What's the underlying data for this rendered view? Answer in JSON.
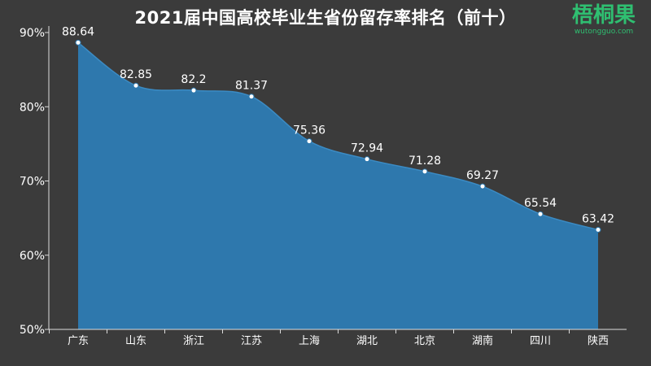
{
  "title": "2021届中国高校毕业生省份留存率排名（前十）",
  "logo": {
    "text": "梧桐果",
    "url": "wutongguo.com"
  },
  "colors": {
    "background": "#3b3b3b",
    "area_fill": "#2e78ad",
    "axis": "#dddddd",
    "text": "#ffffff",
    "logo": "#2fbf71"
  },
  "chart_data": {
    "type": "area",
    "title": "2021届中国高校毕业生省份留存率排名（前十）",
    "categories": [
      "广东",
      "山东",
      "浙江",
      "江苏",
      "上海",
      "湖北",
      "北京",
      "湖南",
      "四川",
      "陕西"
    ],
    "values": [
      88.64,
      82.85,
      82.2,
      81.37,
      75.36,
      72.94,
      71.28,
      69.27,
      65.54,
      63.42
    ],
    "value_labels": [
      "88.64",
      "82.85",
      "82.2",
      "81.37",
      "75.36",
      "72.94",
      "71.28",
      "69.27",
      "65.54",
      "63.42"
    ],
    "ylim": [
      50,
      90
    ],
    "yticks": [
      50,
      60,
      70,
      80,
      90
    ],
    "ytick_labels": [
      "50%",
      "60%",
      "70%",
      "80%",
      "90%"
    ],
    "xlabel": "",
    "ylabel": "",
    "grid": false,
    "legend": "none",
    "smooth": true
  }
}
